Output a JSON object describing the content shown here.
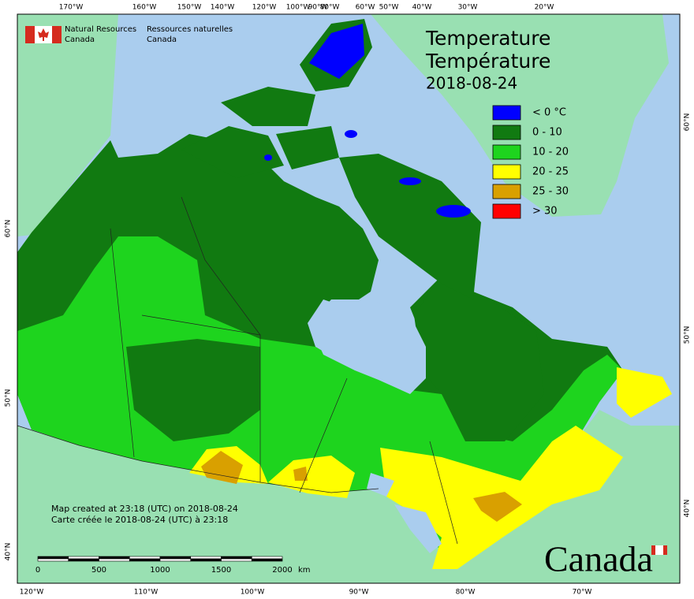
{
  "agency": {
    "en": [
      "Natural Resources",
      "Canada"
    ],
    "fr": [
      "Ressources naturelles",
      "Canada"
    ]
  },
  "title": {
    "en": "Temperature",
    "fr": "Température",
    "date": "2018-08-24"
  },
  "legend": [
    {
      "label": "< 0 °C",
      "color": "#0000ff"
    },
    {
      "label": "0 - 10",
      "color": "#117a11"
    },
    {
      "label": "10 - 20",
      "color": "#1ed41e"
    },
    {
      "label": "20 - 25",
      "color": "#ffff00"
    },
    {
      "label": "25 - 30",
      "color": "#d9a000"
    },
    {
      "label": "> 30",
      "color": "#ff0000"
    }
  ],
  "notes": [
    "Map created at 23:18 (UTC) on 2018-08-24",
    "Carte créée le 2018-08-24 (UTC) à 23:18"
  ],
  "scale": {
    "ticks": [
      "0",
      "500",
      "1000",
      "1500",
      "2000"
    ],
    "unit": "km"
  },
  "graticule": {
    "top": [
      "170°W",
      "160°W",
      "150°W",
      "140°W",
      "120°W",
      "100°W",
      "90°W",
      "80°W",
      "60°W",
      "50°W",
      "40°W",
      "30°W",
      "20°W"
    ],
    "bottom": [
      "120°W",
      "110°W",
      "100°W",
      "90°W",
      "80°W",
      "70°W"
    ],
    "left": [
      "60°N",
      "50°N",
      "40°N"
    ],
    "right": [
      "60°N",
      "50°N",
      "40°N"
    ]
  },
  "wordmark": "Canada"
}
